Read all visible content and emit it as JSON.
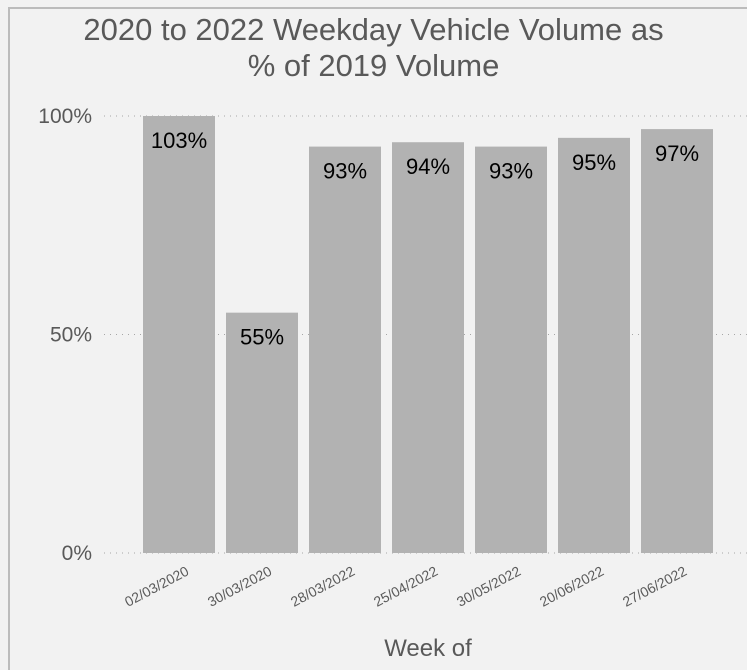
{
  "chart_data": {
    "type": "bar",
    "title_lines": [
      "2020 to 2022 Weekday Vehicle Volume as",
      "% of 2019 Volume"
    ],
    "xlabel": "Week of",
    "ylabel": "",
    "categories": [
      "02/03/2020",
      "30/03/2020",
      "28/03/2022",
      "25/04/2022",
      "30/05/2022",
      "20/06/2022",
      "27/06/2022"
    ],
    "values": [
      103,
      55,
      93,
      94,
      93,
      95,
      97
    ],
    "value_labels": [
      "103%",
      "55%",
      "93%",
      "94%",
      "93%",
      "95%",
      "97%"
    ],
    "ylim": [
      0,
      100
    ],
    "yticks": [
      0,
      50,
      100
    ],
    "ytick_labels": [
      "0%",
      "50%",
      "100%"
    ],
    "grid": "horizontal-dotted",
    "bar_color": "#b2b2b2",
    "legend": "none"
  }
}
